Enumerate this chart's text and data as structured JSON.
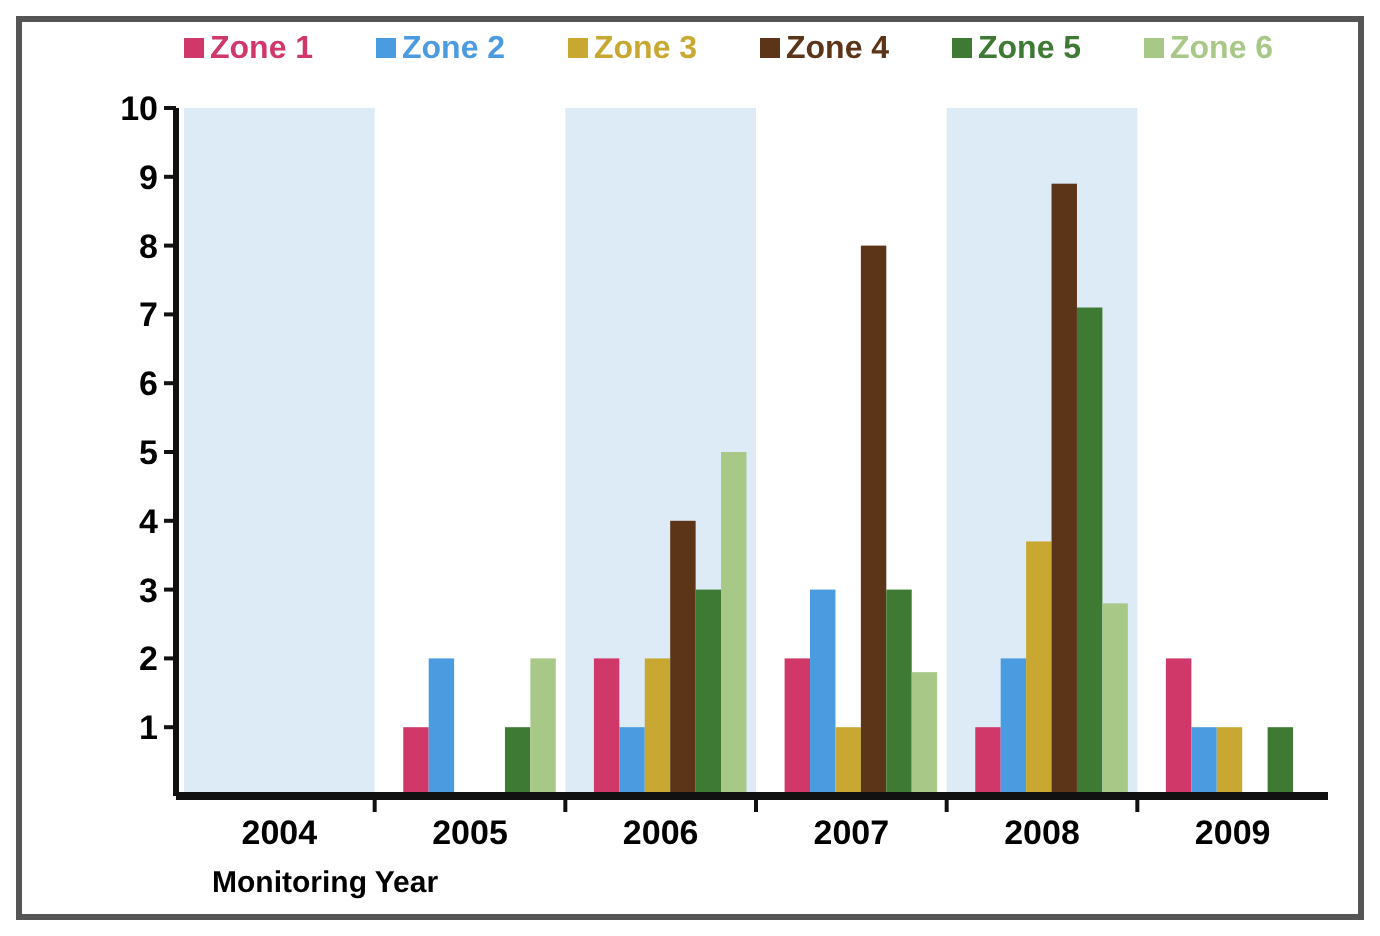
{
  "chart_data": {
    "type": "bar",
    "xlabel": "Monitoring Year",
    "categories": [
      "2004",
      "2005",
      "2006",
      "2007",
      "2008",
      "2009"
    ],
    "series": [
      {
        "name": "Zone 1",
        "color": "#d0386a",
        "values": [
          0,
          1,
          2,
          2,
          1,
          2
        ]
      },
      {
        "name": "Zone 2",
        "color": "#4a9be0",
        "values": [
          0,
          2,
          1,
          3,
          2,
          1
        ]
      },
      {
        "name": "Zone 3",
        "color": "#c8a830",
        "values": [
          0,
          0,
          2,
          1,
          3.7,
          1
        ]
      },
      {
        "name": "Zone 4",
        "color": "#5c3418",
        "values": [
          0,
          0,
          4,
          8,
          8.9,
          0
        ]
      },
      {
        "name": "Zone 5",
        "color": "#3e7a34",
        "values": [
          0,
          1,
          3,
          3,
          7.1,
          1
        ]
      },
      {
        "name": "Zone 6",
        "color": "#a8c888",
        "values": [
          0,
          2,
          5,
          1.8,
          2.8,
          0
        ]
      }
    ],
    "ylim": [
      0,
      10
    ],
    "yticks": [
      1,
      2,
      3,
      4,
      5,
      6,
      7,
      8,
      9,
      10
    ],
    "bands": [
      {
        "axis": "x",
        "from": "2004",
        "to": "2004",
        "color": "#dcebf6"
      },
      {
        "axis": "x",
        "from": "2006",
        "to": "2006",
        "color": "#dcebf6"
      },
      {
        "axis": "x",
        "from": "2008",
        "to": "2008",
        "color": "#dcebf6"
      }
    ],
    "grid": false,
    "legend": "top"
  }
}
